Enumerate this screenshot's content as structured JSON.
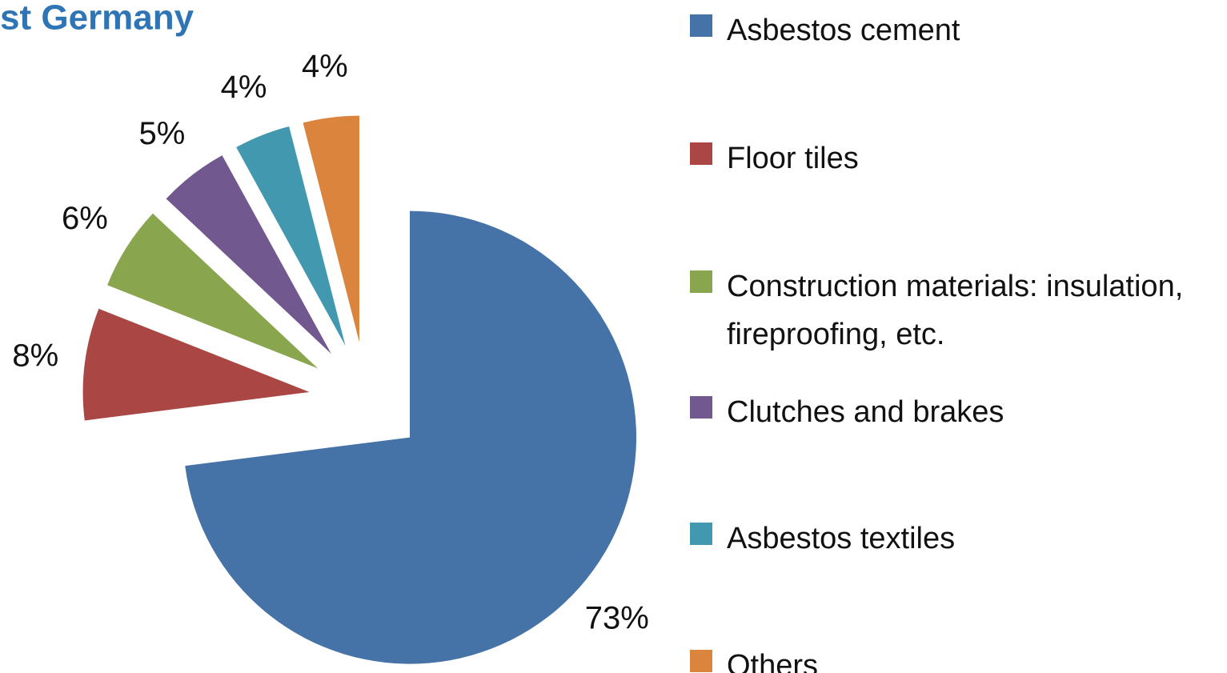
{
  "chart_data": {
    "type": "pie",
    "title": "st Germany",
    "categories": [
      "Asbestos cement",
      "Floor tiles",
      "Construction materials: insulation, fireproofing, etc.",
      "Clutches and brakes",
      "Asbestos textiles",
      "Others"
    ],
    "values": [
      73,
      8,
      6,
      5,
      4,
      4
    ],
    "value_labels": [
      "73%",
      "8%",
      "6%",
      "5%",
      "4%",
      "4%"
    ],
    "colors": [
      "#4572a7",
      "#aa4643",
      "#89a54e",
      "#71588f",
      "#4198af",
      "#db843d"
    ],
    "legend": "right"
  }
}
